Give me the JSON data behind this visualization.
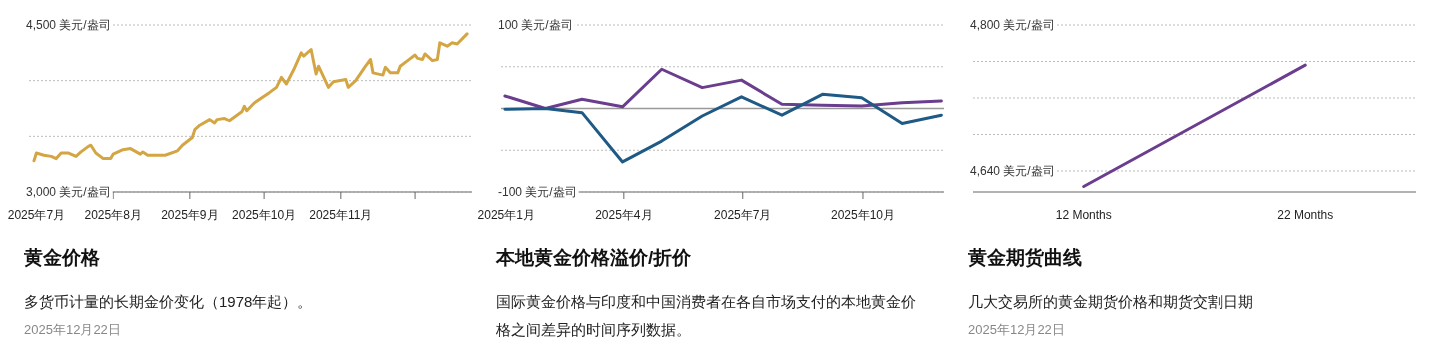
{
  "chart_data": [
    {
      "type": "line",
      "title": "黄金价格",
      "subtitle": "多货币计量的长期金价变化（1978年起）。",
      "annotations": [
        "2025年12月22日"
      ],
      "x": [
        "2025-06-30",
        "2025-07-01",
        "2025-07-04",
        "2025-07-07",
        "2025-07-09",
        "2025-07-11",
        "2025-07-14",
        "2025-07-17",
        "2025-07-19",
        "2025-07-22",
        "2025-07-23",
        "2025-07-25",
        "2025-07-28",
        "2025-07-31",
        "2025-08-01",
        "2025-08-05",
        "2025-08-08",
        "2025-08-12",
        "2025-08-13",
        "2025-08-15",
        "2025-08-20",
        "2025-08-22",
        "2025-08-27",
        "2025-08-29",
        "2025-09-02",
        "2025-09-03",
        "2025-09-05",
        "2025-09-09",
        "2025-09-11",
        "2025-09-12",
        "2025-09-15",
        "2025-09-17",
        "2025-09-22",
        "2025-09-23",
        "2025-09-24",
        "2025-09-27",
        "2025-10-01",
        "2025-10-03",
        "2025-10-06",
        "2025-10-08",
        "2025-10-10",
        "2025-10-13",
        "2025-10-16",
        "2025-10-17",
        "2025-10-20",
        "2025-10-22",
        "2025-10-23",
        "2025-10-27",
        "2025-10-29",
        "2025-11-03",
        "2025-11-04",
        "2025-11-07",
        "2025-11-11",
        "2025-11-13",
        "2025-11-14",
        "2025-11-18",
        "2025-11-19",
        "2025-11-21",
        "2025-11-24",
        "2025-11-25",
        "2025-11-28",
        "2025-12-01",
        "2025-12-02",
        "2025-12-04",
        "2025-12-05",
        "2025-12-08",
        "2025-12-10",
        "2025-12-11",
        "2025-12-14",
        "2025-12-16",
        "2025-12-18",
        "2025-12-22"
      ],
      "series": [
        {
          "color": "#d4a543",
          "values": [
            3280,
            3350,
            3330,
            3320,
            3300,
            3350,
            3350,
            3320,
            3360,
            3410,
            3420,
            3350,
            3300,
            3300,
            3340,
            3380,
            3390,
            3340,
            3360,
            3330,
            3330,
            3330,
            3370,
            3420,
            3490,
            3560,
            3600,
            3650,
            3620,
            3650,
            3660,
            3640,
            3720,
            3770,
            3730,
            3800,
            3860,
            3890,
            3940,
            4030,
            3970,
            4100,
            4250,
            4220,
            4280,
            4060,
            4130,
            3940,
            3990,
            4010,
            3940,
            4000,
            4130,
            4190,
            4070,
            4050,
            4120,
            4070,
            4070,
            4130,
            4180,
            4230,
            4200,
            4190,
            4240,
            4180,
            4190,
            4340,
            4310,
            4340,
            4330,
            4420
          ]
        }
      ],
      "xlim": [
        "2025-06-28",
        "2025-12-24"
      ],
      "xticks": [
        {
          "value": "2025-07-01",
          "label": "2025年7月"
        },
        {
          "value": "2025-08-01",
          "label": "2025年8月"
        },
        {
          "value": "2025-09-01",
          "label": "2025年9月"
        },
        {
          "value": "2025-10-01",
          "label": "2025年10月"
        },
        {
          "value": "2025-11-01",
          "label": "2025年11月"
        },
        {
          "value": "2025-12-01",
          "label": null
        }
      ],
      "ylim": [
        3000,
        4500
      ],
      "yticks": [
        {
          "value": 3000,
          "label": "3,000 美元/盎司"
        },
        {
          "value": 3500,
          "label": null
        },
        {
          "value": 4000,
          "label": null
        },
        {
          "value": 4500,
          "label": "4,500 美元/盎司"
        }
      ],
      "grid": "y"
    },
    {
      "type": "line",
      "title": "本地黄金价格溢价/折价",
      "subtitle": "国际黄金价格与印度和中国消费者在各自市场支付的本地黄金价格之间差异的时间序列数据。",
      "x": [
        "2024-12-31",
        "2025-01-31",
        "2025-02-28",
        "2025-03-31",
        "2025-04-30",
        "2025-05-31",
        "2025-06-30",
        "2025-07-31",
        "2025-08-31",
        "2025-09-30",
        "2025-10-31",
        "2025-11-30"
      ],
      "series": [
        {
          "color": "#6b3d8e",
          "values": [
            15,
            0,
            11,
            2,
            47,
            25,
            34,
            5,
            4,
            3,
            7,
            9
          ]
        },
        {
          "color": "#1e5a85",
          "values": [
            -1,
            0,
            -5,
            -64,
            -39,
            -9,
            14,
            -8,
            17,
            13,
            -18,
            -8
          ]
        }
      ],
      "xlim": [
        "2024-12-28",
        "2025-12-02"
      ],
      "xticks": [
        {
          "value": "2025-01-01",
          "label": "2025年1月"
        },
        {
          "value": "2025-04-01",
          "label": "2025年4月"
        },
        {
          "value": "2025-07-01",
          "label": "2025年7月"
        },
        {
          "value": "2025-10-01",
          "label": "2025年10月"
        }
      ],
      "ylim": [
        -100,
        100
      ],
      "yticks": [
        {
          "value": -100,
          "label": "-100 美元/盎司"
        },
        {
          "value": -50,
          "label": null
        },
        {
          "value": 0,
          "label": null
        },
        {
          "value": 50,
          "label": null
        },
        {
          "value": 100,
          "label": "100 美元/盎司"
        }
      ],
      "ref_lines": [
        {
          "axis": "y",
          "value": 0,
          "color": "#999999"
        }
      ],
      "grid": "y"
    },
    {
      "type": "line",
      "title": "黄金期货曲线",
      "subtitle": "几大交易所的黄金期货价格和期货交割日期",
      "annotations": [
        "2025年12月22日"
      ],
      "categories": [
        "12 Months",
        "22 Months"
      ],
      "series": [
        {
          "color": "#6b3d8e",
          "values": [
            4623,
            4756
          ]
        }
      ],
      "ylim": [
        4617,
        4800
      ],
      "yticks": [
        {
          "value": 4640,
          "label": "4,640 美元/盎司"
        },
        {
          "value": 4680,
          "label": null
        },
        {
          "value": 4720,
          "label": null
        },
        {
          "value": 4760,
          "label": null
        },
        {
          "value": 4800,
          "label": "4,800 美元/盎司"
        }
      ],
      "grid": "y"
    }
  ]
}
